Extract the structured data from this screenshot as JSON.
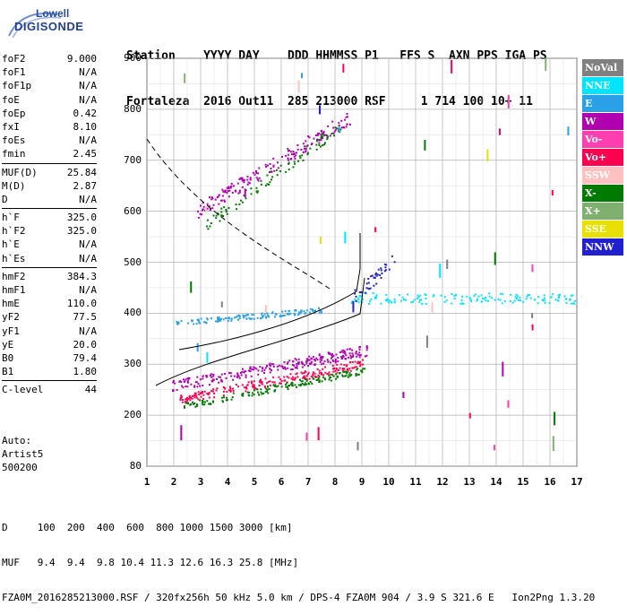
{
  "logo": {
    "line1": "Lowell",
    "line2": "DIGISONDE"
  },
  "header": {
    "line1": "Station    YYYY DAY    DDD HHMMSS P1   FFS S  AXN PPS IGA PS",
    "line2": "Fortaleza  2016 Out11  285 213000 RSF     1 714 100 10+ 11"
  },
  "params": [
    {
      "name": "foF2",
      "value": "9.000"
    },
    {
      "name": "foF1",
      "value": "N/A"
    },
    {
      "name": "foF1p",
      "value": "N/A"
    },
    {
      "name": "foE",
      "value": "N/A"
    },
    {
      "name": "foEp",
      "value": "0.42"
    },
    {
      "name": "fxI",
      "value": "8.10"
    },
    {
      "name": "foEs",
      "value": "N/A"
    },
    {
      "name": "fmin",
      "value": "2.45"
    },
    {
      "sep": true
    },
    {
      "name": "MUF(D)",
      "value": "25.84"
    },
    {
      "name": "M(D)",
      "value": "2.87"
    },
    {
      "name": "D",
      "value": "N/A"
    },
    {
      "sep": true
    },
    {
      "name": "h`F",
      "value": "325.0"
    },
    {
      "name": "h`F2",
      "value": "325.0"
    },
    {
      "name": "h`E",
      "value": "N/A"
    },
    {
      "name": "h`Es",
      "value": "N/A"
    },
    {
      "sep": true
    },
    {
      "name": "hmF2",
      "value": "384.3"
    },
    {
      "name": "hmF1",
      "value": "N/A"
    },
    {
      "name": "hmE",
      "value": "110.0"
    },
    {
      "name": "yF2",
      "value": "77.5"
    },
    {
      "name": "yF1",
      "value": "N/A"
    },
    {
      "name": "yE",
      "value": "20.0"
    },
    {
      "name": "B0",
      "value": "79.4"
    },
    {
      "name": "B1",
      "value": "1.80"
    },
    {
      "sep": true
    },
    {
      "name": "C-level",
      "value": "44"
    }
  ],
  "auto": {
    "line1": "Auto:",
    "line2": "Artist5",
    "line3": "500200"
  },
  "y_ticks": [
    "900",
    "800",
    "700",
    "600",
    "500",
    "400",
    "300",
    "200",
    "80"
  ],
  "x_ticks": [
    "1",
    "2",
    "3",
    "4",
    "5",
    "6",
    "7",
    "8",
    "9",
    "10",
    "11",
    "12",
    "13",
    "14",
    "15",
    "16",
    "17"
  ],
  "legend": [
    {
      "label": "NoVal",
      "color": "#808080"
    },
    {
      "label": "NNE",
      "color": "#00e5ff"
    },
    {
      "label": "E",
      "color": "#2aa0e8"
    },
    {
      "label": "W",
      "color": "#b000b0"
    },
    {
      "label": "Vo-",
      "color": "#ff3fb0"
    },
    {
      "label": "Vo+",
      "color": "#ff0050"
    },
    {
      "label": "SSW",
      "color": "#ffc0c0"
    },
    {
      "label": "X-",
      "color": "#007a00"
    },
    {
      "label": "X+",
      "color": "#80b070"
    },
    {
      "label": "SSE",
      "color": "#e8e000"
    },
    {
      "label": "NNW",
      "color": "#2020d0"
    }
  ],
  "footer": {
    "line1": "D     100  200  400  600  800 1000 1500 3000 [km]",
    "line2": "MUF   9.4  9.4  9.8 10.4 11.3 12.6 16.3 25.8 [MHz]",
    "line3": "FZA0M_2016285213000.RSF / 320fx256h 50 kHz 5.0 km / DPS-4 FZA0M 904 / 3.9 S 321.6 E   Ion2Png 1.3.20"
  }
}
